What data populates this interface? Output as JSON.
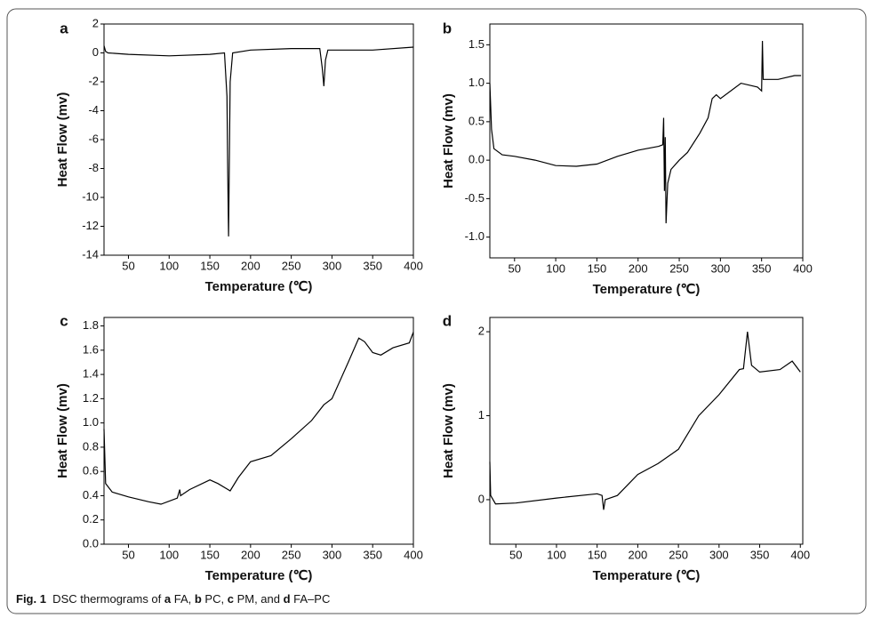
{
  "chart_data": [
    {
      "type": "line",
      "label": "a",
      "xlabel": "Temperature (℃)",
      "ylabel": "Heat Flow (mv)",
      "color": "#000000",
      "xlim": [
        20,
        400
      ],
      "ylim": [
        -14,
        2
      ],
      "xticks": [
        50,
        100,
        150,
        200,
        250,
        300,
        350,
        400
      ],
      "yticks": [
        2,
        0,
        -2,
        -4,
        -6,
        -8,
        -10,
        -12,
        -14
      ],
      "x": [
        20,
        22,
        25,
        50,
        100,
        150,
        168,
        171,
        172,
        173,
        175,
        178,
        200,
        250,
        285,
        288,
        290,
        292,
        295,
        350,
        400
      ],
      "values": [
        0.5,
        0.1,
        0,
        -0.1,
        -0.2,
        -0.1,
        0,
        -3,
        -8.5,
        -12.7,
        -2,
        0,
        0.2,
        0.3,
        0.3,
        -1,
        -2.3,
        -0.5,
        0.2,
        0.2,
        0.4
      ]
    },
    {
      "type": "line",
      "label": "b",
      "xlabel": "Temperature (℃)",
      "ylabel": "Heat Flow (mv)",
      "color": "#000000",
      "xlim": [
        20,
        400
      ],
      "ylim": [
        -1.27,
        1.77
      ],
      "xticks": [
        50,
        100,
        150,
        200,
        250,
        300,
        350,
        400
      ],
      "yticks": [
        1.5,
        {
          "value": 1,
          "label": "1.0"
        },
        0.5,
        {
          "value": 0,
          "label": "0.0"
        },
        -0.5,
        {
          "value": -1,
          "label": "-1.0"
        }
      ],
      "x": [
        20,
        22,
        25,
        35,
        50,
        75,
        100,
        125,
        150,
        175,
        200,
        225,
        230,
        231,
        232,
        233,
        234,
        236,
        240,
        250,
        260,
        275,
        285,
        290,
        295,
        300,
        325,
        345,
        350,
        351,
        352,
        370,
        390,
        398
      ],
      "values": [
        1.0,
        0.4,
        0.15,
        0.07,
        0.05,
        0.0,
        -0.07,
        -0.08,
        -0.05,
        0.05,
        0.13,
        0.18,
        0.2,
        0.55,
        -0.4,
        0.3,
        -0.82,
        -0.3,
        -0.12,
        0.0,
        0.1,
        0.35,
        0.55,
        0.8,
        0.85,
        0.8,
        1.0,
        0.95,
        0.9,
        1.55,
        1.05,
        1.05,
        1.1,
        1.1
      ]
    },
    {
      "type": "line",
      "label": "c",
      "xlabel": "Temperature (℃)",
      "ylabel": "Heat Flow (mv)",
      "color": "#000000",
      "xlim": [
        20,
        400
      ],
      "ylim": [
        0,
        1.87
      ],
      "xticks": [
        50,
        100,
        150,
        200,
        250,
        300,
        350,
        400
      ],
      "yticks": [
        1.8,
        1.6,
        1.4,
        1.2,
        {
          "value": 1,
          "label": "1.0"
        },
        0.8,
        0.6,
        0.4,
        0.2,
        {
          "value": 0,
          "label": "0.0"
        }
      ],
      "x": [
        20,
        22,
        30,
        50,
        75,
        90,
        110,
        113,
        114,
        125,
        150,
        160,
        175,
        185,
        200,
        225,
        250,
        275,
        290,
        300,
        320,
        333,
        340,
        350,
        360,
        375,
        395,
        400
      ],
      "values": [
        0.95,
        0.5,
        0.43,
        0.39,
        0.35,
        0.33,
        0.38,
        0.45,
        0.4,
        0.45,
        0.53,
        0.5,
        0.44,
        0.55,
        0.68,
        0.73,
        0.87,
        1.02,
        1.15,
        1.2,
        1.5,
        1.7,
        1.67,
        1.58,
        1.56,
        1.62,
        1.66,
        1.75
      ]
    },
    {
      "type": "line",
      "label": "d",
      "xlabel": "Temperature (℃)",
      "ylabel": "Heat Flow (mv)",
      "color": "#000000",
      "xlim": [
        18,
        403
      ],
      "ylim": [
        -0.53,
        2.17
      ],
      "xticks": [
        50,
        100,
        150,
        200,
        250,
        300,
        350,
        400
      ],
      "yticks": [
        2,
        1,
        0
      ],
      "x": [
        18,
        19,
        25,
        50,
        100,
        150,
        156,
        158,
        160,
        175,
        200,
        225,
        250,
        275,
        300,
        325,
        330,
        335,
        340,
        350,
        375,
        390,
        400
      ],
      "values": [
        0.45,
        0.05,
        -0.05,
        -0.04,
        0.02,
        0.07,
        0.05,
        -0.12,
        0.0,
        0.05,
        0.3,
        0.43,
        0.6,
        1.0,
        1.25,
        1.55,
        1.56,
        2.0,
        1.6,
        1.52,
        1.55,
        1.65,
        1.52
      ]
    }
  ],
  "caption": [
    {
      "text": "Fig. 1",
      "bold": true
    },
    {
      "text": "  DSC thermograms of ",
      "bold": false
    },
    {
      "text": "a",
      "bold": true
    },
    {
      "text": " FA, ",
      "bold": false
    },
    {
      "text": "b",
      "bold": true
    },
    {
      "text": " PC, ",
      "bold": false
    },
    {
      "text": "c",
      "bold": true
    },
    {
      "text": " PM, and ",
      "bold": false
    },
    {
      "text": "d",
      "bold": true
    },
    {
      "text": " FA–PC",
      "bold": false
    }
  ]
}
